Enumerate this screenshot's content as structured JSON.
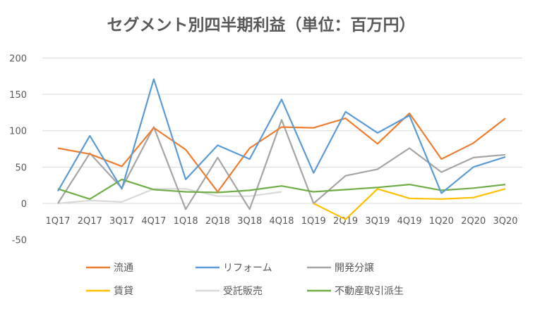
{
  "chart_data": {
    "type": "line",
    "title": "セグメント別四半期利益（単位：百万円）",
    "xlabel": "",
    "ylabel": "",
    "ylim": [
      -50,
      200
    ],
    "yticks": [
      -50,
      0,
      50,
      100,
      150,
      200
    ],
    "grid": true,
    "legend_position": "bottom",
    "categories": [
      "1Q17",
      "2Q17",
      "3Q17",
      "4Q17",
      "1Q18",
      "2Q18",
      "3Q18",
      "4Q18",
      "1Q19",
      "2Q19",
      "3Q19",
      "4Q19",
      "1Q20",
      "2Q20",
      "3Q20"
    ],
    "series": [
      {
        "name": "流通",
        "color": "#ED7D31",
        "values": [
          76,
          68,
          51,
          104,
          74,
          16,
          76,
          105,
          104,
          117,
          82,
          124,
          61,
          83,
          117
        ]
      },
      {
        "name": "リフォーム",
        "color": "#5B9BD5",
        "values": [
          17,
          93,
          20,
          171,
          33,
          80,
          61,
          143,
          42,
          126,
          97,
          121,
          14,
          50,
          64
        ]
      },
      {
        "name": "開発分譲",
        "color": "#A5A5A5",
        "values": [
          0,
          69,
          21,
          105,
          -8,
          63,
          -8,
          115,
          0,
          38,
          47,
          76,
          43,
          63,
          67
        ]
      },
      {
        "name": "賃貸",
        "color": "#FFC000",
        "values": [
          null,
          null,
          null,
          null,
          null,
          null,
          null,
          null,
          0,
          -22,
          20,
          7,
          6,
          8,
          20
        ]
      },
      {
        "name": "受託販売",
        "color": "#D9D9D9",
        "values": [
          0,
          4,
          2,
          20,
          20,
          10,
          10,
          16,
          null,
          null,
          null,
          null,
          null,
          null,
          null
        ]
      },
      {
        "name": "不動産取引派生",
        "color": "#70AD47",
        "values": [
          20,
          6,
          33,
          19,
          16,
          15,
          18,
          24,
          16,
          19,
          22,
          26,
          18,
          21,
          26
        ]
      }
    ]
  }
}
